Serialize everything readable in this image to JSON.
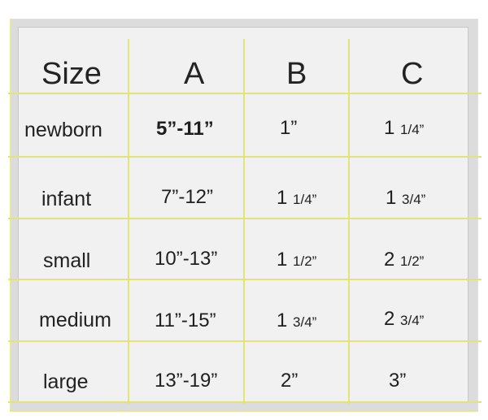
{
  "table": {
    "headers": [
      "Size",
      "A",
      "B",
      "C"
    ],
    "rows": [
      {
        "size": "newborn",
        "a": "5”-11”",
        "b_whole": "1”",
        "b_frac": "",
        "c_whole": "1",
        "c_frac": "1/4”"
      },
      {
        "size": "infant",
        "a": "7”-12”",
        "b_whole": "1",
        "b_frac": "1/4”",
        "c_whole": "1",
        "c_frac": "3/4”"
      },
      {
        "size": "small",
        "a": "10”-13”",
        "b_whole": "1",
        "b_frac": "1/2”",
        "c_whole": "2",
        "c_frac": "1/2”"
      },
      {
        "size": "medium",
        "a": "11”-15”",
        "b_whole": "1",
        "b_frac": "3/4”",
        "c_whole": "2",
        "c_frac": "3/4”"
      },
      {
        "size": "large",
        "a": "13”-19”",
        "b_whole": "2”",
        "b_frac": "",
        "c_whole": "3”",
        "c_frac": ""
      }
    ]
  },
  "colors": {
    "grid_line": "#e3e37c",
    "frame_bg": "#dcdcdc",
    "cell_bg": "#f1f1f1",
    "text": "#1e1e1e"
  }
}
